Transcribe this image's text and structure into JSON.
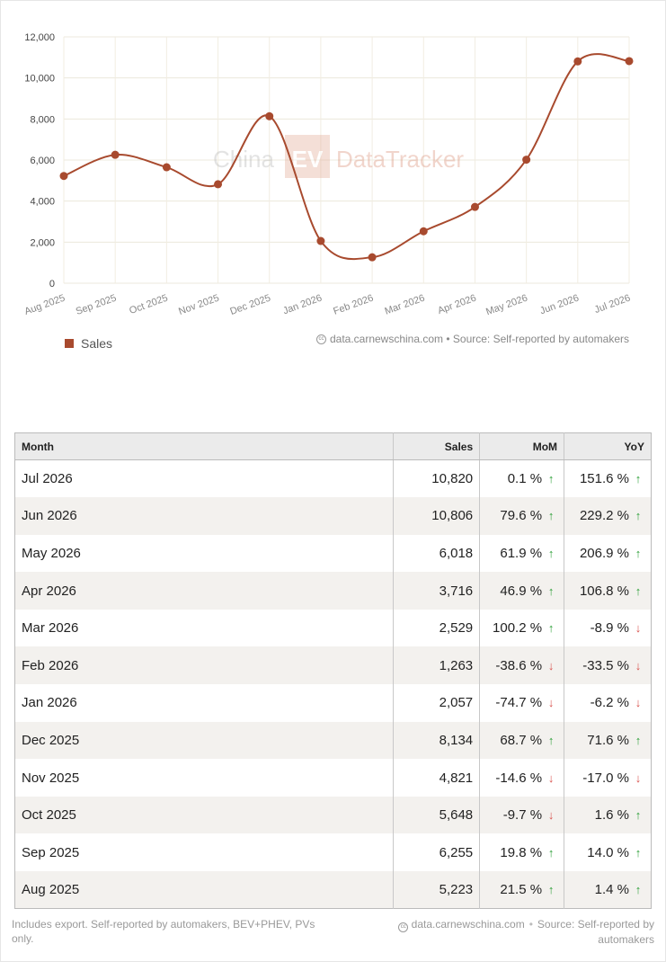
{
  "chart_data": {
    "type": "line",
    "x": [
      "Aug 2025",
      "Sep 2025",
      "Oct 2025",
      "Nov 2025",
      "Dec 2025",
      "Jan 2026",
      "Feb 2026",
      "Mar 2026",
      "Apr 2026",
      "May 2026",
      "Jun 2026",
      "Jul 2026"
    ],
    "series": [
      {
        "name": "Sales",
        "values": [
          5223,
          6255,
          5648,
          4821,
          8134,
          2057,
          1263,
          2529,
          3716,
          6018,
          10806,
          10820
        ]
      }
    ],
    "ylim": [
      0,
      12000
    ],
    "yticks": [
      "0",
      "2,000",
      "4,000",
      "6,000",
      "8,000",
      "10,000",
      "12,000"
    ],
    "grid": true,
    "legend_position": "bottom-left",
    "color": "#a84a2e"
  },
  "watermark": {
    "text_left": "China",
    "text_badge": "EV",
    "text_right": "DataTracker"
  },
  "chart_credit": "data.carnewschina.com • Source: Self-reported by automakers",
  "legend": {
    "label": "Sales"
  },
  "table": {
    "headers": {
      "month": "Month",
      "sales": "Sales",
      "mom": "MoM",
      "yoy": "YoY"
    },
    "rows": [
      {
        "month": "Jul 2026",
        "sales": "10,820",
        "mom": "0.1 %",
        "mom_dir": "up",
        "yoy": "151.6 %",
        "yoy_dir": "up"
      },
      {
        "month": "Jun 2026",
        "sales": "10,806",
        "mom": "79.6 %",
        "mom_dir": "up",
        "yoy": "229.2 %",
        "yoy_dir": "up"
      },
      {
        "month": "May 2026",
        "sales": "6,018",
        "mom": "61.9 %",
        "mom_dir": "up",
        "yoy": "206.9 %",
        "yoy_dir": "up"
      },
      {
        "month": "Apr 2026",
        "sales": "3,716",
        "mom": "46.9 %",
        "mom_dir": "up",
        "yoy": "106.8 %",
        "yoy_dir": "up"
      },
      {
        "month": "Mar 2026",
        "sales": "2,529",
        "mom": "100.2 %",
        "mom_dir": "up",
        "yoy": "-8.9 %",
        "yoy_dir": "down"
      },
      {
        "month": "Feb 2026",
        "sales": "1,263",
        "mom": "-38.6 %",
        "mom_dir": "down",
        "yoy": "-33.5 %",
        "yoy_dir": "down"
      },
      {
        "month": "Jan 2026",
        "sales": "2,057",
        "mom": "-74.7 %",
        "mom_dir": "down",
        "yoy": "-6.2 %",
        "yoy_dir": "down"
      },
      {
        "month": "Dec 2025",
        "sales": "8,134",
        "mom": "68.7 %",
        "mom_dir": "up",
        "yoy": "71.6 %",
        "yoy_dir": "up"
      },
      {
        "month": "Nov 2025",
        "sales": "4,821",
        "mom": "-14.6 %",
        "mom_dir": "down",
        "yoy": "-17.0 %",
        "yoy_dir": "down"
      },
      {
        "month": "Oct 2025",
        "sales": "5,648",
        "mom": "-9.7 %",
        "mom_dir": "down",
        "yoy": "1.6 %",
        "yoy_dir": "up"
      },
      {
        "month": "Sep 2025",
        "sales": "6,255",
        "mom": "19.8 %",
        "mom_dir": "up",
        "yoy": "14.0 %",
        "yoy_dir": "up"
      },
      {
        "month": "Aug 2025",
        "sales": "5,223",
        "mom": "21.5 %",
        "mom_dir": "up",
        "yoy": "1.4 %",
        "yoy_dir": "up"
      }
    ]
  },
  "footer": {
    "note": "Includes export. Self-reported by automakers, BEV+PHEV, PVs only.",
    "site": "data.carnewschina.com",
    "source": "Source: Self-reported by automakers"
  },
  "icons": {
    "up": "arrow-up-icon",
    "down": "arrow-down-icon",
    "cc": "creative-commons-icon"
  }
}
